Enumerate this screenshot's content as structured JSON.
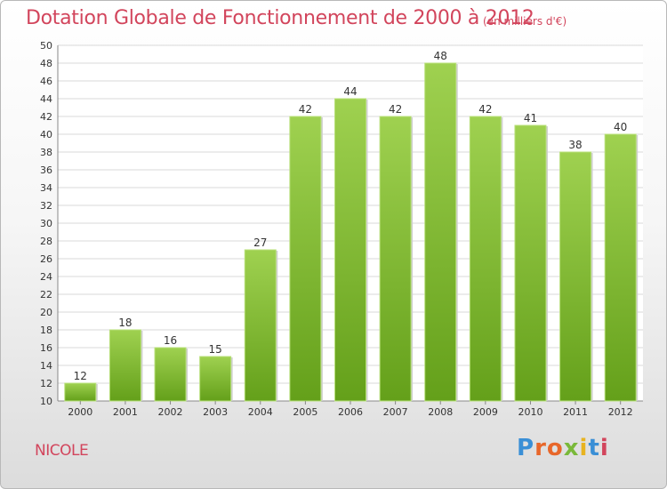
{
  "header": {
    "title": "Dotation Globale de Fonctionnement de 2000 à 2012",
    "subtitle": "(en milliers d'€)"
  },
  "footer": {
    "commune": "NICOLE",
    "logo": "Proxiti"
  },
  "colors": {
    "title": "#d2455c",
    "bar_light": "#9fd150",
    "bar_dark": "#64a01a",
    "grid": "#d8d8d8"
  },
  "chart_data": {
    "type": "bar",
    "title": "Dotation Globale de Fonctionnement de 2000 à 2012",
    "subtitle": "(en milliers d'€)",
    "xlabel": "",
    "ylabel": "",
    "categories": [
      "2000",
      "2001",
      "2002",
      "2003",
      "2004",
      "2005",
      "2006",
      "2007",
      "2008",
      "2009",
      "2010",
      "2011",
      "2012"
    ],
    "values": [
      12,
      18,
      16,
      15,
      27,
      42,
      44,
      42,
      48,
      42,
      41,
      38,
      40
    ],
    "ylim": [
      10,
      50
    ],
    "yticks": [
      10,
      12,
      14,
      16,
      18,
      20,
      22,
      24,
      26,
      28,
      30,
      32,
      34,
      36,
      38,
      40,
      42,
      44,
      46,
      48,
      50
    ],
    "grid": true,
    "legend": "none"
  }
}
